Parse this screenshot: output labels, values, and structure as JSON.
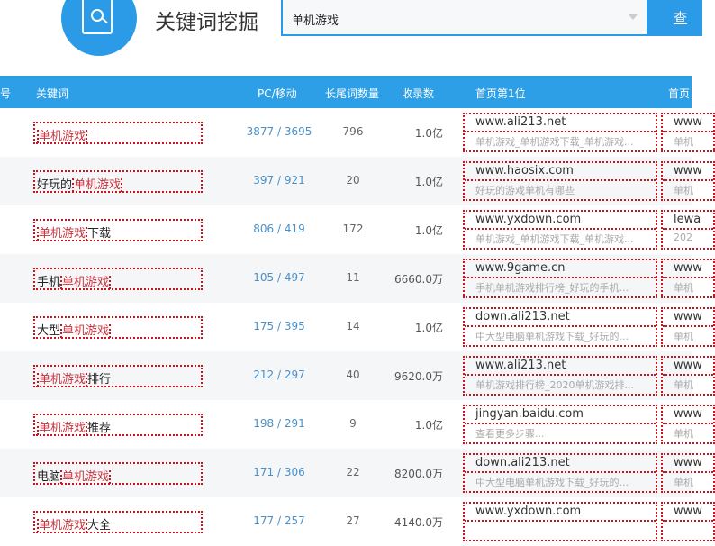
{
  "header": {
    "title": "关键词挖掘",
    "search_value": "单机游戏",
    "search_button": "查",
    "logo_icon": "book-search-icon",
    "accent": "#2b9be8"
  },
  "columns": [
    "号",
    "关键词",
    "PC/移动",
    "长尾词数量",
    "收录数",
    "首页第1位",
    "首页"
  ],
  "rows": [
    {
      "pre": "",
      "hl": "单机游戏",
      "post": "",
      "pc": "3877 / 3695",
      "count": "796",
      "index": "1.0亿",
      "site1": {
        "domain": "www.ali213.net",
        "snippet": "单机游戏_单机游戏下载_单机游戏..."
      },
      "site2": {
        "domain": "www",
        "snippet": "单机"
      }
    },
    {
      "pre": "好玩的",
      "hl": "单机游戏",
      "post": "",
      "pc": "397 / 921",
      "count": "20",
      "index": "1.0亿",
      "site1": {
        "domain": "www.haosix.com",
        "snippet": "好玩的游戏单机有哪些"
      },
      "site2": {
        "domain": "www",
        "snippet": "单机"
      }
    },
    {
      "pre": "",
      "hl": "单机游戏",
      "post": "下载",
      "pc": "806 / 419",
      "count": "172",
      "index": "1.0亿",
      "site1": {
        "domain": "www.yxdown.com",
        "snippet": "单机游戏_单机游戏下载_单机游戏..."
      },
      "site2": {
        "domain": "lewa",
        "snippet": "202"
      }
    },
    {
      "pre": "手机",
      "hl": "单机游戏",
      "post": "",
      "pc": "105 / 497",
      "count": "11",
      "index": "6660.0万",
      "site1": {
        "domain": "www.9game.cn",
        "snippet": "手机单机游戏排行榜_好玩的手机..."
      },
      "site2": {
        "domain": "www",
        "snippet": "单机"
      }
    },
    {
      "pre": "大型",
      "hl": "单机游戏",
      "post": "",
      "pc": "175 / 395",
      "count": "14",
      "index": "1.0亿",
      "site1": {
        "domain": "down.ali213.net",
        "snippet": "中大型电脑单机游戏下载_好玩的..."
      },
      "site2": {
        "domain": "www",
        "snippet": "单机"
      }
    },
    {
      "pre": "",
      "hl": "单机游戏",
      "post": "排行",
      "pc": "212 / 297",
      "count": "40",
      "index": "9620.0万",
      "site1": {
        "domain": "www.ali213.net",
        "snippet": "单机游戏排行榜_2020单机游戏排..."
      },
      "site2": {
        "domain": "www",
        "snippet": "单机"
      }
    },
    {
      "pre": "",
      "hl": "单机游戏",
      "post": "推荐",
      "pc": "198 / 291",
      "count": "9",
      "index": "1.0亿",
      "site1": {
        "domain": "jingyan.baidu.com",
        "snippet": "查看更多步骤..."
      },
      "site2": {
        "domain": "www",
        "snippet": "单机"
      }
    },
    {
      "pre": "电脑",
      "hl": "单机游戏",
      "post": "",
      "pc": "171 / 306",
      "count": "22",
      "index": "8200.0万",
      "site1": {
        "domain": "down.ali213.net",
        "snippet": "中大型电脑单机游戏下载_好玩的..."
      },
      "site2": {
        "domain": "www",
        "snippet": "单机"
      }
    },
    {
      "pre": "",
      "hl": "单机游戏",
      "post": "大全",
      "pc": "177 / 257",
      "count": "27",
      "index": "4140.0万",
      "site1": {
        "domain": "www.yxdown.com",
        "snippet": ""
      },
      "site2": {
        "domain": "www",
        "snippet": ""
      }
    }
  ]
}
